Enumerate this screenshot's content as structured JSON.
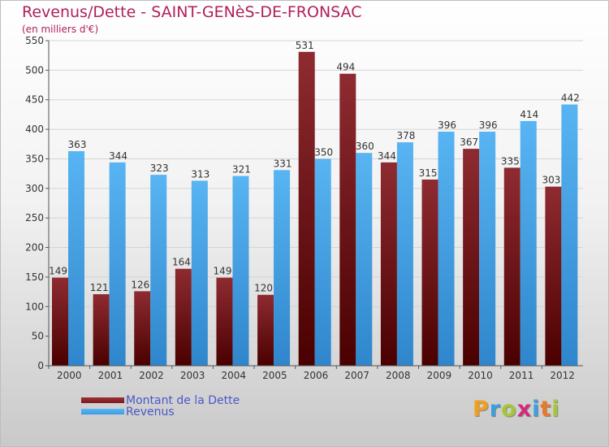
{
  "header": {
    "title": "Revenus/Dette - SAINT-GENèS-DE-FRONSAC",
    "subtitle": "(en milliers d'€)"
  },
  "legend": {
    "items": [
      {
        "label": "Montant de la Dette",
        "color": "#7a1a1f"
      },
      {
        "label": "Revenus",
        "color": "#3d9be2"
      }
    ]
  },
  "logo": {
    "letters": [
      "P",
      "r",
      "o",
      "x",
      "i",
      "t",
      "i"
    ],
    "colors": [
      "#f0a020",
      "#3ba0dd",
      "#a6c63a",
      "#d42a7a",
      "#3ba0dd",
      "#e8792a",
      "#a6c63a"
    ]
  },
  "chart_data": {
    "type": "bar",
    "categories": [
      "2000",
      "2001",
      "2002",
      "2003",
      "2004",
      "2005",
      "2006",
      "2007",
      "2008",
      "2009",
      "2010",
      "2011",
      "2012"
    ],
    "series": [
      {
        "name": "Montant de la Dette",
        "color": "#7a1a1f",
        "values": [
          149,
          121,
          126,
          164,
          149,
          120,
          531,
          494,
          344,
          315,
          367,
          335,
          303
        ]
      },
      {
        "name": "Revenus",
        "color": "#3d9be2",
        "values": [
          363,
          344,
          323,
          313,
          321,
          331,
          350,
          360,
          378,
          396,
          396,
          414,
          442
        ]
      }
    ],
    "ylim": [
      0,
      550
    ],
    "yticks": [
      "0",
      "50",
      "100",
      "150",
      "200",
      "250",
      "300",
      "350",
      "400",
      "450",
      "500",
      "550"
    ],
    "grid": true,
    "legend_position": "bottom-left"
  }
}
